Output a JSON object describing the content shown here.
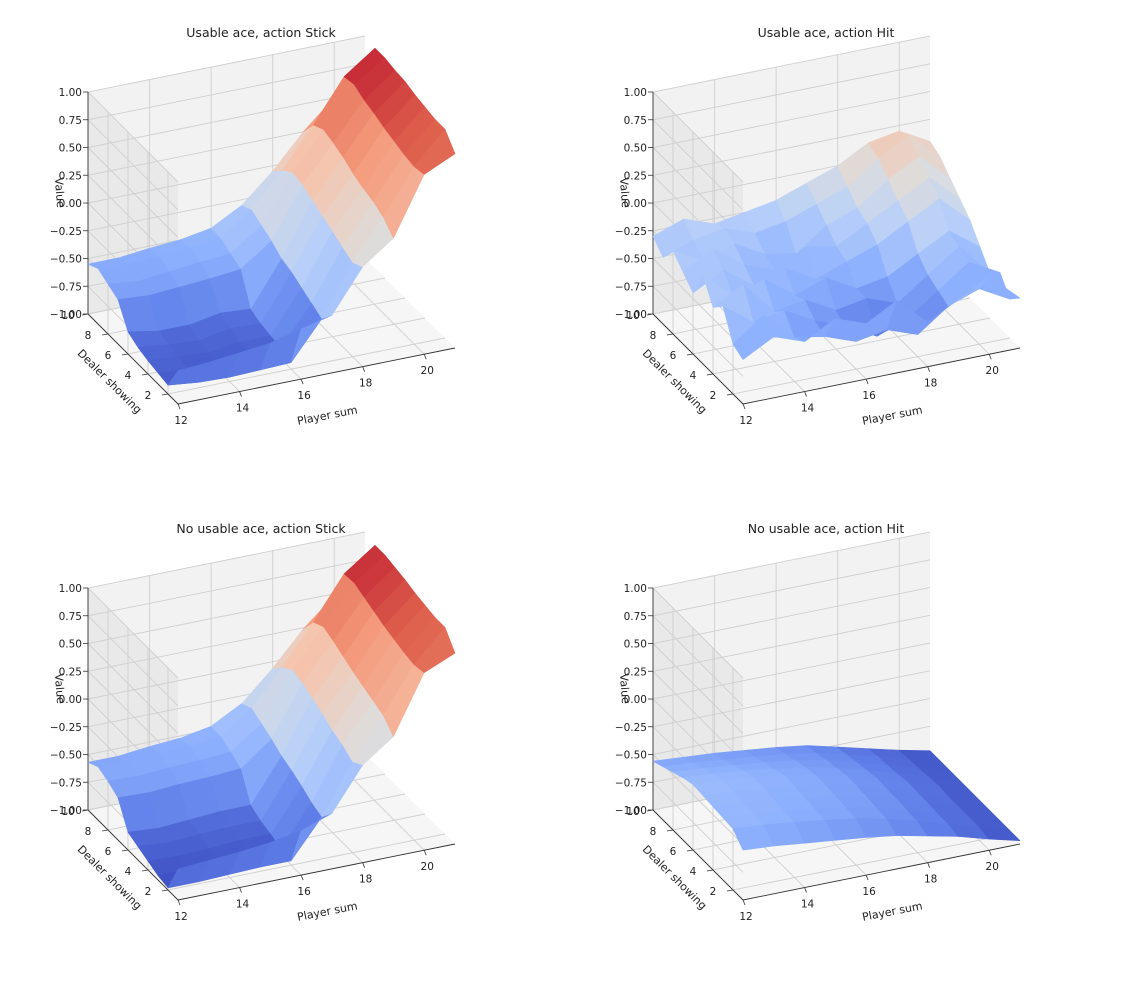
{
  "chart_data": [
    {
      "type": "surface",
      "title": "Usable ace, action Stick",
      "xlabel": "Player sum",
      "ylabel": "Dealer showing",
      "zlabel": "Value",
      "x": [
        12,
        13,
        14,
        15,
        16,
        17,
        18,
        19,
        20,
        21
      ],
      "y": [
        1,
        2,
        3,
        4,
        5,
        6,
        7,
        8,
        9,
        10
      ],
      "xticks": [
        "12",
        "14",
        "16",
        "18",
        "20"
      ],
      "yticks": [
        "2",
        "4",
        "6",
        "8",
        "10"
      ],
      "zticks": [
        "−1.00",
        "−0.75",
        "−0.50",
        "−0.25",
        "0.00",
        "0.25",
        "0.50",
        "0.75",
        "1.00"
      ],
      "zlim": [
        -1,
        1
      ],
      "grid": true,
      "colormap": "coolwarm",
      "z": [
        [
          -0.7,
          -0.68,
          -0.65,
          -0.62,
          -0.55,
          -0.48,
          -0.1,
          0.1,
          0.62,
          0.75
        ],
        [
          -0.92,
          -0.95,
          -0.96,
          -0.95,
          -0.94,
          -0.6,
          -0.15,
          0.2,
          0.6,
          0.88
        ],
        [
          -0.9,
          -0.92,
          -0.93,
          -0.9,
          -0.9,
          -0.55,
          -0.1,
          0.25,
          0.62,
          0.88
        ],
        [
          -0.88,
          -0.9,
          -0.92,
          -0.88,
          -0.88,
          -0.5,
          -0.05,
          0.28,
          0.65,
          0.9
        ],
        [
          -0.85,
          -0.88,
          -0.9,
          -0.85,
          -0.86,
          -0.45,
          0.0,
          0.32,
          0.68,
          0.92
        ],
        [
          -0.8,
          -0.85,
          -0.85,
          -0.8,
          -0.82,
          -0.42,
          0.05,
          0.38,
          0.72,
          0.95
        ],
        [
          -0.6,
          -0.62,
          -0.6,
          -0.58,
          -0.55,
          -0.35,
          0.1,
          0.42,
          0.75,
          0.96
        ],
        [
          -0.55,
          -0.58,
          -0.55,
          -0.52,
          -0.5,
          -0.3,
          0.12,
          0.45,
          0.8,
          0.98
        ],
        [
          -0.5,
          -0.52,
          -0.5,
          -0.48,
          -0.45,
          -0.25,
          0.05,
          0.4,
          0.78,
          0.98
        ],
        [
          -0.55,
          -0.55,
          -0.52,
          -0.5,
          -0.45,
          -0.3,
          -0.05,
          0.25,
          0.5,
          0.6
        ]
      ]
    },
    {
      "type": "surface",
      "title": "Usable ace, action Hit",
      "xlabel": "Player sum",
      "ylabel": "Dealer showing",
      "zlabel": "Value",
      "x": [
        12,
        13,
        14,
        15,
        16,
        17,
        18,
        19,
        20,
        21
      ],
      "y": [
        1,
        2,
        3,
        4,
        5,
        6,
        7,
        8,
        9,
        10
      ],
      "xticks": [
        "12",
        "14",
        "16",
        "18",
        "20"
      ],
      "yticks": [
        "2",
        "4",
        "6",
        "8",
        "10"
      ],
      "zticks": [
        "−1.00",
        "−0.75",
        "−0.50",
        "−0.25",
        "0.00",
        "0.25",
        "0.50",
        "0.75",
        "1.00"
      ],
      "zlim": [
        -1,
        1
      ],
      "grid": true,
      "colormap": "coolwarm",
      "z": [
        [
          -0.6,
          -0.45,
          -0.55,
          -0.4,
          -0.5,
          -0.35,
          -0.6,
          -0.45,
          -0.3,
          -0.55
        ],
        [
          -0.55,
          -0.35,
          -0.6,
          -0.65,
          -0.75,
          -0.7,
          -0.8,
          -0.6,
          -0.5,
          -0.65
        ],
        [
          -0.3,
          -0.5,
          -0.45,
          -0.6,
          -0.7,
          -0.85,
          -0.75,
          -0.55,
          -0.35,
          -0.5
        ],
        [
          -0.4,
          -0.25,
          -0.55,
          -0.5,
          -0.65,
          -0.6,
          -0.7,
          -0.5,
          -0.3,
          -0.6
        ],
        [
          -0.2,
          -0.45,
          -0.35,
          -0.55,
          -0.45,
          -0.6,
          -0.55,
          -0.4,
          -0.25,
          -0.45
        ],
        [
          -0.45,
          -0.3,
          -0.5,
          -0.4,
          -0.55,
          -0.45,
          -0.35,
          -0.2,
          -0.05,
          -0.3
        ],
        [
          -0.35,
          -0.2,
          -0.4,
          -0.5,
          -0.35,
          -0.4,
          -0.25,
          -0.1,
          0.05,
          -0.2
        ],
        [
          -0.25,
          -0.4,
          -0.3,
          -0.45,
          -0.5,
          -0.3,
          -0.2,
          0.0,
          0.15,
          -0.1
        ],
        [
          -0.4,
          -0.3,
          -0.25,
          -0.35,
          -0.3,
          -0.2,
          -0.1,
          0.1,
          0.25,
          0.0
        ],
        [
          -0.3,
          -0.2,
          -0.3,
          -0.25,
          -0.2,
          -0.1,
          0.0,
          0.15,
          0.2,
          0.05
        ]
      ]
    },
    {
      "type": "surface",
      "title": "No usable ace, action Stick",
      "xlabel": "Player sum",
      "ylabel": "Dealer showing",
      "zlabel": "Value",
      "x": [
        12,
        13,
        14,
        15,
        16,
        17,
        18,
        19,
        20,
        21
      ],
      "y": [
        1,
        2,
        3,
        4,
        5,
        6,
        7,
        8,
        9,
        10
      ],
      "xticks": [
        "12",
        "14",
        "16",
        "18",
        "20"
      ],
      "yticks": [
        "2",
        "4",
        "6",
        "8",
        "10"
      ],
      "zticks": [
        "−1.00",
        "−0.75",
        "−0.50",
        "−0.25",
        "0.00",
        "0.25",
        "0.50",
        "0.75",
        "1.00"
      ],
      "zlim": [
        -1,
        1
      ],
      "grid": true,
      "colormap": "coolwarm",
      "z": [
        [
          -0.72,
          -0.7,
          -0.68,
          -0.65,
          -0.6,
          -0.5,
          -0.12,
          0.08,
          0.6,
          0.72
        ],
        [
          -0.98,
          -0.98,
          -0.97,
          -0.96,
          -0.96,
          -0.62,
          -0.18,
          0.18,
          0.58,
          0.86
        ],
        [
          -0.96,
          -0.96,
          -0.95,
          -0.94,
          -0.94,
          -0.58,
          -0.12,
          0.22,
          0.6,
          0.86
        ],
        [
          -0.92,
          -0.93,
          -0.92,
          -0.9,
          -0.9,
          -0.52,
          -0.08,
          0.26,
          0.63,
          0.88
        ],
        [
          -0.88,
          -0.9,
          -0.88,
          -0.87,
          -0.87,
          -0.47,
          -0.02,
          0.3,
          0.66,
          0.9
        ],
        [
          -0.84,
          -0.86,
          -0.84,
          -0.82,
          -0.82,
          -0.43,
          0.03,
          0.35,
          0.7,
          0.93
        ],
        [
          -0.62,
          -0.63,
          -0.61,
          -0.6,
          -0.58,
          -0.37,
          0.08,
          0.4,
          0.74,
          0.95
        ],
        [
          -0.56,
          -0.57,
          -0.55,
          -0.54,
          -0.52,
          -0.32,
          0.11,
          0.44,
          0.78,
          0.97
        ],
        [
          -0.52,
          -0.53,
          -0.51,
          -0.5,
          -0.47,
          -0.27,
          0.04,
          0.39,
          0.77,
          0.97
        ],
        [
          -0.57,
          -0.57,
          -0.54,
          -0.52,
          -0.47,
          -0.32,
          -0.06,
          0.24,
          0.48,
          0.58
        ]
      ]
    },
    {
      "type": "surface",
      "title": "No usable ace, action Hit",
      "xlabel": "Player sum",
      "ylabel": "Dealer showing",
      "zlabel": "Value",
      "x": [
        12,
        13,
        14,
        15,
        16,
        17,
        18,
        19,
        20,
        21
      ],
      "y": [
        1,
        2,
        3,
        4,
        5,
        6,
        7,
        8,
        9,
        10
      ],
      "xticks": [
        "12",
        "14",
        "16",
        "18",
        "20"
      ],
      "yticks": [
        "2",
        "4",
        "6",
        "8",
        "10"
      ],
      "zticks": [
        "−1.00",
        "−0.75",
        "−0.50",
        "−0.25",
        "0.00",
        "0.25",
        "0.50",
        "0.75",
        "1.00"
      ],
      "zlim": [
        -1,
        1
      ],
      "grid": true,
      "colormap": "coolwarm",
      "z": [
        [
          -0.55,
          -0.57,
          -0.6,
          -0.63,
          -0.66,
          -0.7,
          -0.76,
          -0.82,
          -0.9,
          -0.97
        ],
        [
          -0.45,
          -0.47,
          -0.5,
          -0.54,
          -0.58,
          -0.64,
          -0.72,
          -0.8,
          -0.88,
          -0.97
        ],
        [
          -0.44,
          -0.46,
          -0.49,
          -0.53,
          -0.57,
          -0.63,
          -0.71,
          -0.8,
          -0.88,
          -0.97
        ],
        [
          -0.43,
          -0.45,
          -0.48,
          -0.52,
          -0.56,
          -0.62,
          -0.7,
          -0.79,
          -0.88,
          -0.97
        ],
        [
          -0.42,
          -0.44,
          -0.47,
          -0.51,
          -0.55,
          -0.61,
          -0.7,
          -0.79,
          -0.88,
          -0.97
        ],
        [
          -0.41,
          -0.43,
          -0.46,
          -0.5,
          -0.55,
          -0.61,
          -0.69,
          -0.78,
          -0.87,
          -0.97
        ],
        [
          -0.44,
          -0.46,
          -0.49,
          -0.53,
          -0.57,
          -0.63,
          -0.71,
          -0.8,
          -0.88,
          -0.97
        ],
        [
          -0.48,
          -0.5,
          -0.53,
          -0.56,
          -0.6,
          -0.65,
          -0.73,
          -0.81,
          -0.89,
          -0.97
        ],
        [
          -0.52,
          -0.54,
          -0.57,
          -0.6,
          -0.63,
          -0.68,
          -0.75,
          -0.82,
          -0.9,
          -0.97
        ],
        [
          -0.56,
          -0.58,
          -0.6,
          -0.63,
          -0.66,
          -0.7,
          -0.77,
          -0.84,
          -0.91,
          -0.97
        ]
      ]
    }
  ]
}
